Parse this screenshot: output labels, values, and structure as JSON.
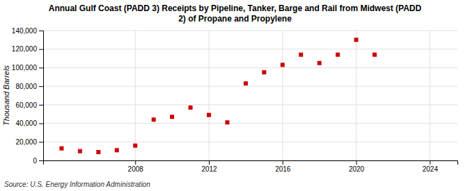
{
  "chart_data": {
    "type": "scatter",
    "title": "Annual Gulf Coast (PADD 3) Receipts by Pipeline, Tanker, Barge and Rail from Midwest (PADD\n2) of Propane and Propylene",
    "ylabel": "Thousand Barrels",
    "source": "Source: U.S. Energy Information Administration",
    "color": "#cc0000",
    "marker": "square",
    "grid": true,
    "xlim": [
      2003,
      2025.5
    ],
    "ylim": [
      0,
      140000
    ],
    "xticks": [
      2008,
      2012,
      2016,
      2020,
      2024
    ],
    "yticks": [
      0,
      {
        "value": 20000,
        "label": "20,000"
      },
      {
        "value": 40000,
        "label": "40,000"
      },
      {
        "value": 60000,
        "label": "60,000"
      },
      {
        "value": 80000,
        "label": "80,000"
      },
      {
        "value": 100000,
        "label": "100,000"
      },
      {
        "value": 120000,
        "label": "120,000"
      },
      {
        "value": 140000,
        "label": "140,000"
      }
    ],
    "x": [
      2004,
      2005,
      2006,
      2007,
      2008,
      2009,
      2010,
      2011,
      2012,
      2013,
      2014,
      2015,
      2016,
      2017,
      2018,
      2019,
      2020,
      2021
    ],
    "values": [
      13000,
      10000,
      9000,
      11000,
      16000,
      44000,
      47000,
      57000,
      49000,
      41000,
      83000,
      95000,
      103000,
      114000,
      105000,
      114000,
      130000,
      114000
    ]
  }
}
